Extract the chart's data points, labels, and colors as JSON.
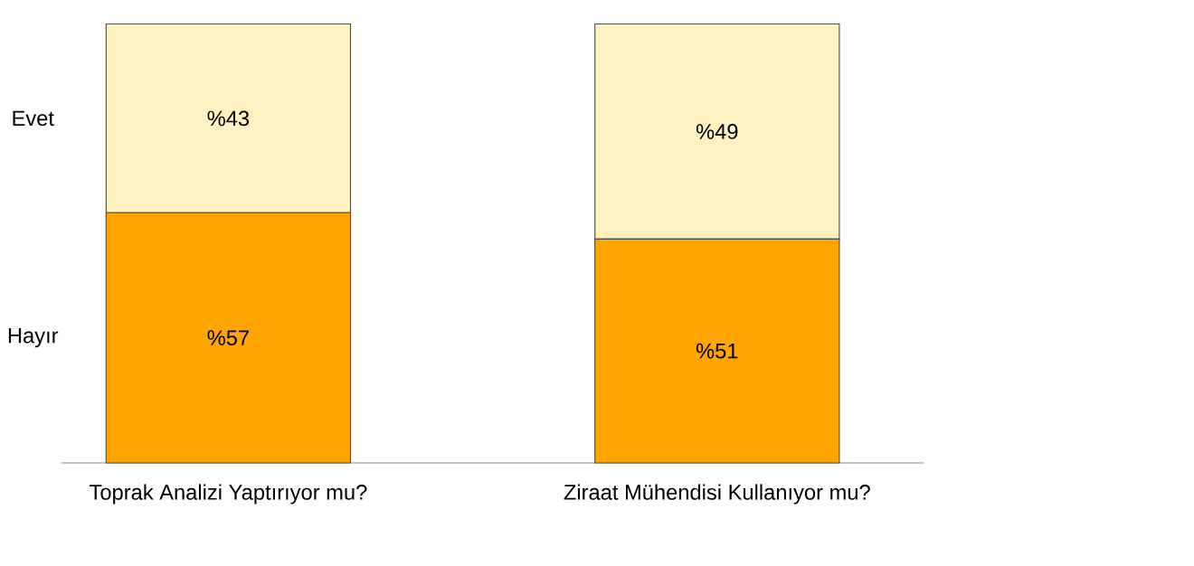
{
  "chart_data": {
    "type": "bar",
    "stacked": true,
    "legend": false,
    "categories": [
      "Toprak Analizi Yaptırıyor mu?",
      "Ziraat Mühendisi Kullanıyor mu?"
    ],
    "series": [
      {
        "name": "Hayır",
        "color": "#ffa500",
        "values": [
          57,
          51
        ],
        "value_labels": [
          "%57",
          "%51"
        ]
      },
      {
        "name": "Evet",
        "color": "#fff2c2",
        "values": [
          43,
          49
        ],
        "value_labels": [
          "%43",
          "%49"
        ]
      }
    ]
  }
}
